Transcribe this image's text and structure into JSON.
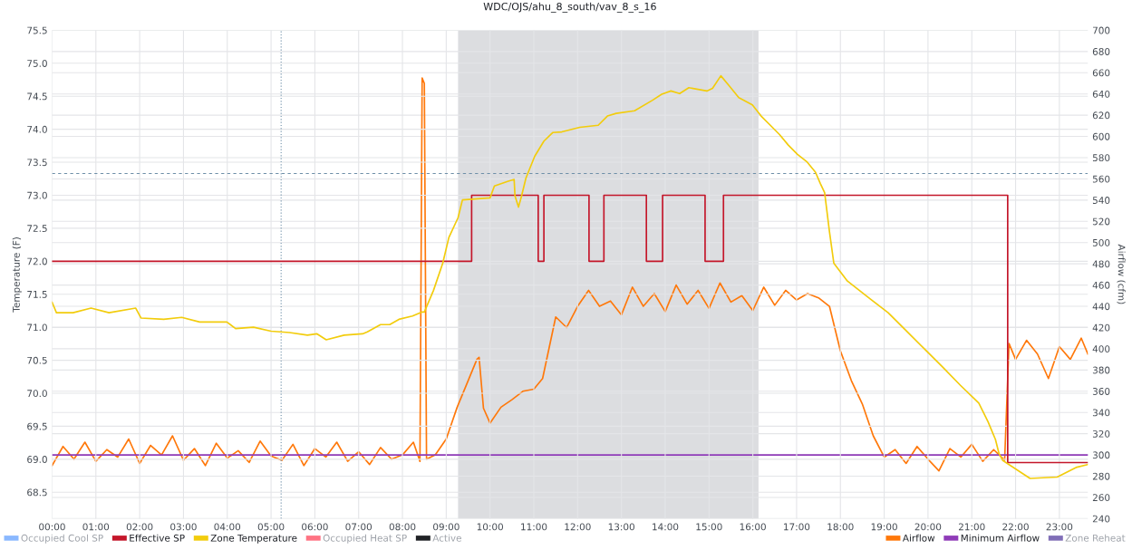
{
  "chart_data": {
    "type": "line",
    "title": "WDC/OJS/ahu_8_south/vav_8_s_16",
    "ylabel": "Temperature (F)",
    "y2label": "Airflow (cfm)",
    "xlim": [
      0,
      23.65
    ],
    "xticks": [
      {
        "value": 0,
        "label": "00:00"
      },
      {
        "value": 1,
        "label": "01:00"
      },
      {
        "value": 2,
        "label": "02:00"
      },
      {
        "value": 3,
        "label": "03:00"
      },
      {
        "value": 4,
        "label": "04:00"
      },
      {
        "value": 5,
        "label": "05:00"
      },
      {
        "value": 6,
        "label": "06:00"
      },
      {
        "value": 7,
        "label": "07:00"
      },
      {
        "value": 8,
        "label": "08:00"
      },
      {
        "value": 9,
        "label": "09:00"
      },
      {
        "value": 10,
        "label": "10:00"
      },
      {
        "value": 11,
        "label": "11:00"
      },
      {
        "value": 12,
        "label": "12:00"
      },
      {
        "value": 13,
        "label": "13:00"
      },
      {
        "value": 14,
        "label": "14:00"
      },
      {
        "value": 15,
        "label": "15:00"
      },
      {
        "value": 16,
        "label": "16:00"
      },
      {
        "value": 17,
        "label": "17:00"
      },
      {
        "value": 18,
        "label": "18:00"
      },
      {
        "value": 19,
        "label": "19:00"
      },
      {
        "value": 20,
        "label": "20:00"
      },
      {
        "value": 21,
        "label": "21:00"
      },
      {
        "value": 22,
        "label": "22:00"
      },
      {
        "value": 23,
        "label": "23:00"
      }
    ],
    "ylim": [
      68.1,
      75.5
    ],
    "yticks": [
      {
        "value": 68.5,
        "label": "68.5"
      },
      {
        "value": 69,
        "label": "69.0"
      },
      {
        "value": 69.5,
        "label": "69.5"
      },
      {
        "value": 70,
        "label": "70.0"
      },
      {
        "value": 70.5,
        "label": "70.5"
      },
      {
        "value": 71,
        "label": "71.0"
      },
      {
        "value": 71.5,
        "label": "71.5"
      },
      {
        "value": 72,
        "label": "72.0"
      },
      {
        "value": 72.5,
        "label": "72.5"
      },
      {
        "value": 73,
        "label": "73.0"
      },
      {
        "value": 73.5,
        "label": "73.5"
      },
      {
        "value": 74,
        "label": "74.0"
      },
      {
        "value": 74.5,
        "label": "74.5"
      },
      {
        "value": 75,
        "label": "75.0"
      },
      {
        "value": 75.5,
        "label": "75.5"
      }
    ],
    "y2lim": [
      240,
      700
    ],
    "y2ticks": [
      240,
      260,
      280,
      300,
      320,
      340,
      360,
      380,
      400,
      420,
      440,
      460,
      480,
      500,
      520,
      540,
      560,
      580,
      600,
      620,
      640,
      660,
      680,
      700
    ],
    "grid": true,
    "legend": "bottom",
    "bands": [
      {
        "axis": "x",
        "from": 9.27,
        "to": 16.13,
        "color": "#dcdde0"
      }
    ],
    "ref_lines": [
      {
        "axis": "y",
        "value": 73.33,
        "color": "#6e8fa8",
        "line_style": "dashed"
      },
      {
        "axis": "x",
        "value": 5.23,
        "color": "#6e8fa8",
        "line_style": "dotted"
      }
    ],
    "series": [
      {
        "name": "Occupied Cool SP",
        "color": "#8ab8ff"
      },
      {
        "name": "Effective SP",
        "type": "step",
        "color": "#c4162a",
        "x": [
          0,
          9.58,
          11.1,
          11.23,
          12.26,
          12.6,
          13.57,
          13.94,
          14.91,
          15.33,
          21.82,
          23.65
        ],
        "values": [
          72,
          73,
          72,
          73,
          72,
          73,
          72,
          73,
          72,
          73,
          68.95,
          68.95
        ]
      },
      {
        "name": "Zone Temperature",
        "color": "#f2cc0c",
        "x": [
          0,
          0.1,
          0.48,
          0.89,
          1.3,
          1.91,
          2.03,
          2.55,
          2.96,
          3.37,
          3.99,
          4.19,
          4.6,
          5.0,
          5.42,
          5.83,
          6.05,
          6.26,
          6.67,
          7.09,
          7.2,
          7.5,
          7.71,
          7.92,
          8.23,
          8.44,
          8.5,
          8.71,
          8.92,
          9.06,
          9.27,
          9.37,
          10.0,
          10.1,
          10.4,
          10.55,
          10.57,
          10.65,
          10.72,
          10.82,
          11.02,
          11.23,
          11.43,
          11.64,
          12.05,
          12.47,
          12.68,
          12.88,
          13.3,
          13.71,
          13.92,
          14.13,
          14.33,
          14.54,
          14.95,
          15.08,
          15.27,
          15.47,
          15.68,
          15.99,
          16.19,
          16.4,
          16.61,
          16.81,
          17.02,
          17.23,
          17.43,
          17.54,
          17.64,
          17.75,
          17.85,
          18.16,
          18.37,
          18.68,
          19.09,
          19.5,
          19.92,
          20.33,
          20.74,
          21.16,
          21.37,
          21.54,
          21.62,
          21.71,
          22.33,
          22.95,
          23.4,
          23.65
        ],
        "values": [
          71.38,
          71.22,
          71.22,
          71.29,
          71.22,
          71.29,
          71.14,
          71.12,
          71.15,
          71.08,
          71.08,
          70.98,
          71.0,
          70.94,
          70.92,
          70.88,
          70.9,
          70.81,
          70.88,
          70.9,
          70.93,
          71.04,
          71.04,
          71.12,
          71.17,
          71.23,
          71.23,
          71.56,
          71.97,
          72.36,
          72.66,
          72.93,
          72.96,
          73.14,
          73.21,
          73.24,
          72.99,
          72.82,
          72.99,
          73.26,
          73.59,
          73.82,
          73.95,
          73.96,
          74.03,
          74.06,
          74.2,
          74.24,
          74.28,
          74.44,
          74.53,
          74.58,
          74.54,
          74.63,
          74.58,
          74.62,
          74.81,
          74.65,
          74.48,
          74.37,
          74.2,
          74.06,
          73.92,
          73.76,
          73.62,
          73.51,
          73.35,
          73.18,
          73.04,
          72.45,
          71.97,
          71.7,
          71.59,
          71.43,
          71.22,
          70.95,
          70.67,
          70.4,
          70.12,
          69.85,
          69.57,
          69.3,
          69.09,
          68.98,
          68.71,
          68.73,
          68.88,
          68.92
        ]
      },
      {
        "name": "Occupied Heat SP",
        "color": "#ff7383"
      },
      {
        "name": "Active",
        "color": "#202226"
      },
      {
        "name": "Airflow",
        "axis": "y2",
        "color": "#ff780a",
        "x": [
          0,
          0.25,
          0.5,
          0.75,
          1.0,
          1.25,
          1.5,
          1.75,
          2.0,
          2.25,
          2.5,
          2.75,
          3.0,
          3.25,
          3.5,
          3.75,
          4.0,
          4.25,
          4.5,
          4.75,
          5.0,
          5.25,
          5.5,
          5.75,
          6.0,
          6.25,
          6.5,
          6.75,
          7.0,
          7.25,
          7.5,
          7.75,
          8.0,
          8.25,
          8.4,
          8.45,
          8.5,
          8.55,
          8.75,
          9.0,
          9.25,
          9.5,
          9.7,
          9.75,
          9.85,
          10.0,
          10.25,
          10.5,
          10.75,
          11.0,
          11.2,
          11.5,
          11.75,
          12.0,
          12.25,
          12.5,
          12.75,
          13.0,
          13.25,
          13.5,
          13.75,
          14.0,
          14.25,
          14.5,
          14.75,
          15.0,
          15.25,
          15.5,
          15.75,
          16.0,
          16.25,
          16.5,
          16.75,
          17.0,
          17.25,
          17.5,
          17.75,
          18.0,
          18.25,
          18.5,
          18.75,
          19.0,
          19.25,
          19.5,
          19.75,
          20.0,
          20.25,
          20.5,
          20.75,
          21.0,
          21.25,
          21.5,
          21.75,
          21.85,
          22.0,
          22.25,
          22.5,
          22.75,
          23.0,
          23.25,
          23.5,
          23.65
        ],
        "values": [
          290,
          308,
          296,
          312,
          294,
          305,
          298,
          315,
          292,
          309,
          300,
          318,
          295,
          306,
          290,
          311,
          297,
          304,
          293,
          313,
          299,
          295,
          310,
          290,
          306,
          298,
          312,
          294,
          303,
          291,
          307,
          296,
          300,
          312,
          294,
          655,
          650,
          296,
          300,
          315,
          345,
          370,
          390,
          392,
          344,
          330,
          345,
          352,
          360,
          362,
          372,
          430,
          420,
          440,
          455,
          440,
          445,
          432,
          458,
          440,
          452,
          435,
          460,
          442,
          455,
          438,
          462,
          444,
          450,
          436,
          458,
          441,
          455,
          446,
          452,
          448,
          440,
          398,
          370,
          348,
          318,
          298,
          305,
          292,
          308,
          296,
          285,
          306,
          298,
          310,
          294,
          305,
          295,
          405,
          390,
          408,
          395,
          372,
          402,
          390,
          410,
          395
        ]
      },
      {
        "name": "Minimum Airflow",
        "axis": "y2",
        "color": "#8f3bb8",
        "x": [
          0,
          23.65
        ],
        "values": [
          300,
          300
        ]
      },
      {
        "name": "Zone Reheat",
        "axis": "y2",
        "color": "#806eb7"
      }
    ]
  }
}
